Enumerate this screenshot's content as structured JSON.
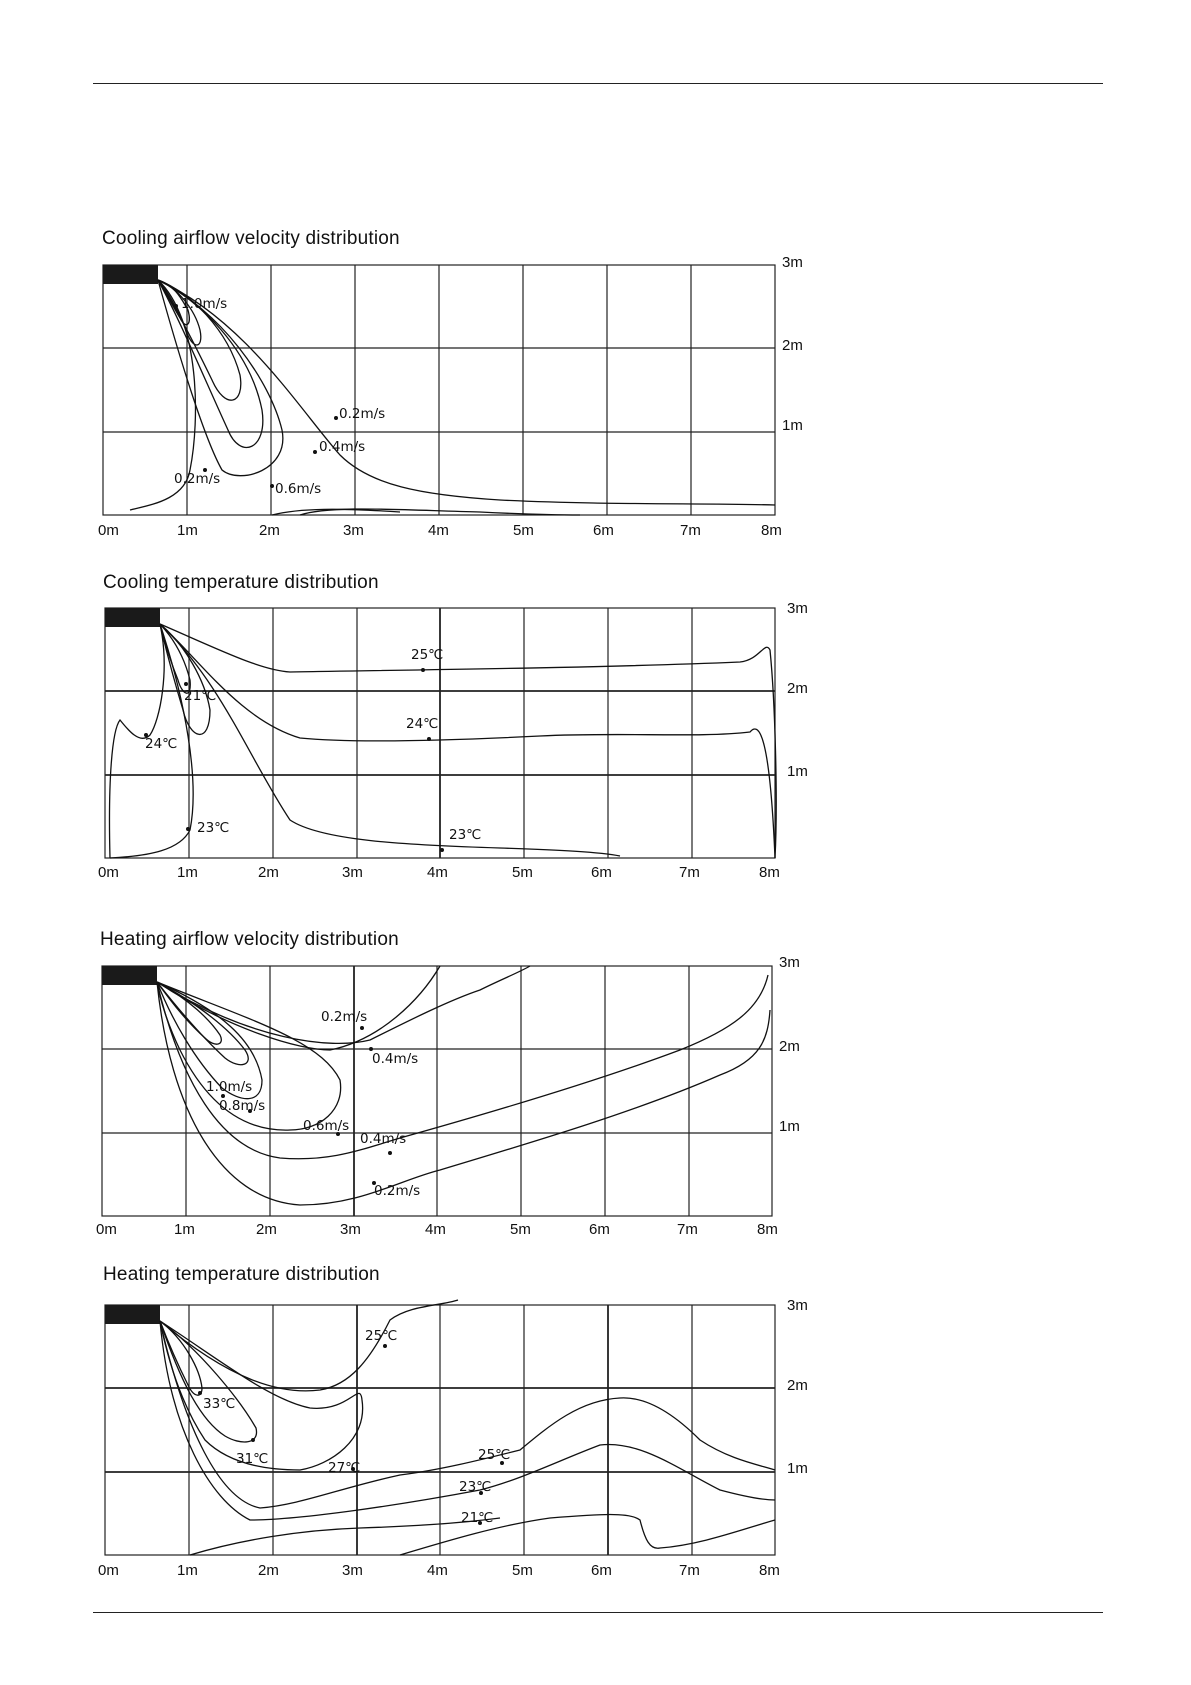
{
  "panels": [
    {
      "id": "cooling-velocity",
      "title": "Cooling airflow velocity distribution",
      "x_ticks": [
        "0m",
        "1m",
        "2m",
        "3m",
        "4m",
        "5m",
        "6m",
        "7m",
        "8m"
      ],
      "y_ticks": [
        "3m",
        "2m",
        "1m"
      ],
      "labels": [
        "1.0m/s",
        "0.2m/s",
        "0.4m/s",
        "0.2m/s",
        "0.6m/s"
      ]
    },
    {
      "id": "cooling-temperature",
      "title": "Cooling temperature distribution",
      "x_ticks": [
        "0m",
        "1m",
        "2m",
        "3m",
        "4m",
        "5m",
        "6m",
        "7m",
        "8m"
      ],
      "y_ticks": [
        "3m",
        "2m",
        "1m"
      ],
      "labels": [
        "25℃",
        "21℃",
        "24℃",
        "24℃",
        "23℃",
        "23℃"
      ]
    },
    {
      "id": "heating-velocity",
      "title": "Heating airflow velocity distribution",
      "x_ticks": [
        "0m",
        "1m",
        "2m",
        "3m",
        "4m",
        "5m",
        "6m",
        "7m",
        "8m"
      ],
      "y_ticks": [
        "3m",
        "2m",
        "1m"
      ],
      "labels": [
        "0.2m/s",
        "0.4m/s",
        "1.0m/s",
        "0.8m/s",
        "0.6m/s",
        "0.4m/s",
        "0.2m/s"
      ]
    },
    {
      "id": "heating-temperature",
      "title": "Heating temperature distribution",
      "x_ticks": [
        "0m",
        "1m",
        "2m",
        "3m",
        "4m",
        "5m",
        "6m",
        "7m",
        "8m"
      ],
      "y_ticks": [
        "3m",
        "2m",
        "1m"
      ],
      "labels": [
        "25℃",
        "33℃",
        "31℃",
        "27℃",
        "25℃",
        "23℃",
        "21℃"
      ]
    }
  ]
}
